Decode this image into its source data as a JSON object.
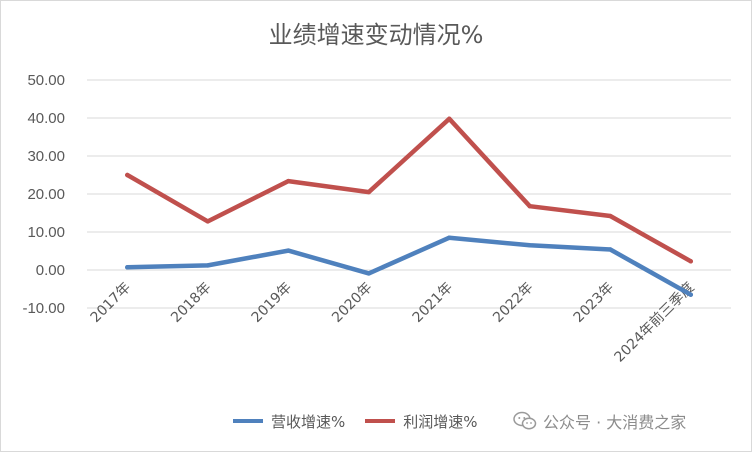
{
  "chart_data": {
    "type": "line",
    "title": "业绩增速变动情况%",
    "xlabel": "",
    "ylabel": "",
    "categories": [
      "2017年",
      "2018年",
      "2019年",
      "2020年",
      "2021年",
      "2022年",
      "2023年",
      "2024年前三季度"
    ],
    "series": [
      {
        "name": "营收增速%",
        "color": "#4f81bd",
        "values": [
          0.7,
          1.2,
          5.1,
          -0.9,
          8.5,
          6.5,
          5.4,
          -6.5
        ]
      },
      {
        "name": "利润增速%",
        "color": "#c0504d",
        "values": [
          25.0,
          12.8,
          23.4,
          20.5,
          39.8,
          16.8,
          14.2,
          2.3
        ]
      }
    ],
    "ylim": [
      -10,
      50
    ],
    "yticks": [
      "50.00",
      "40.00",
      "30.00",
      "20.00",
      "10.00",
      "0.00",
      "-10.00"
    ],
    "ytick_values": [
      50,
      40,
      30,
      20,
      10,
      0,
      -10
    ],
    "grid": true,
    "legend_position": "bottom"
  },
  "watermark": {
    "text": "公众号 · 大消费之家",
    "icon": "wechat-icon"
  }
}
